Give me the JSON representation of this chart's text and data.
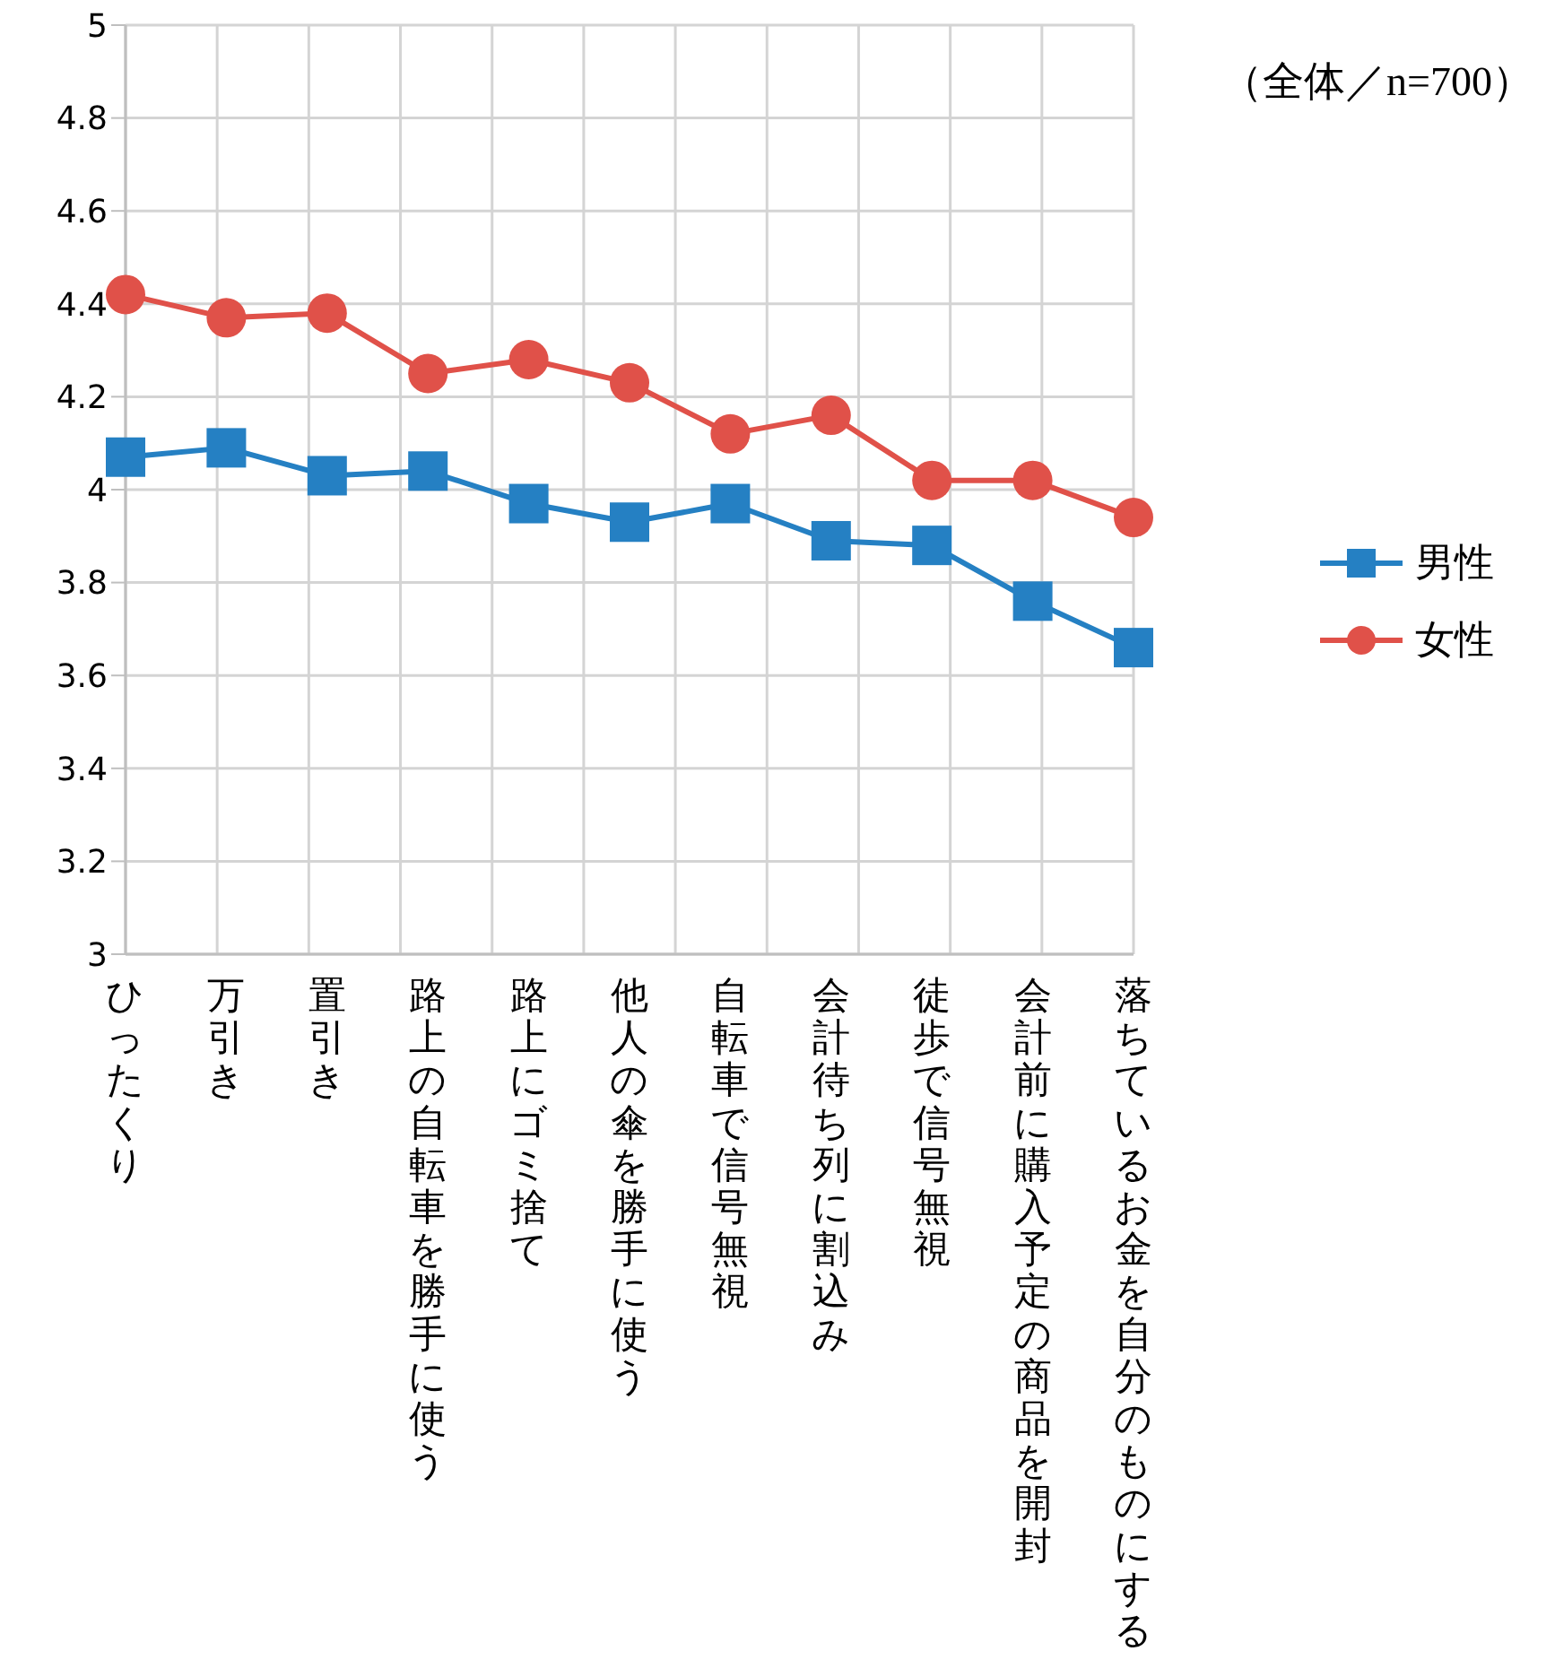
{
  "chart_data": {
    "type": "line",
    "annotations": [
      "（全体／n=700）"
    ],
    "categories": [
      "ひったくり",
      "万引き",
      "置引き",
      "路上の自転車を勝手に使う",
      "路上にゴミ捨て",
      "他人の傘を勝手に使う",
      "自転車で信号無視",
      "会計待ち列に割込み",
      "徒歩で信号無視",
      "会計前に購入予定の商品を開封",
      "落ちているお金を自分のものにする"
    ],
    "series": [
      {
        "name": "男性",
        "color": "#2580c3",
        "marker": "square",
        "values": [
          4.07,
          4.09,
          4.03,
          4.04,
          3.97,
          3.93,
          3.97,
          3.89,
          3.88,
          3.76,
          3.66
        ]
      },
      {
        "name": "女性",
        "color": "#e05149",
        "marker": "circle",
        "values": [
          4.42,
          4.37,
          4.38,
          4.25,
          4.28,
          4.23,
          4.12,
          4.16,
          4.02,
          4.02,
          3.94
        ]
      }
    ],
    "ylim": [
      3,
      5
    ],
    "yticks": [
      3,
      3.2,
      3.4,
      3.6,
      3.8,
      4,
      4.2,
      4.4,
      4.6,
      4.8,
      5
    ],
    "grid": true,
    "legend": "right",
    "line_style": "solid"
  }
}
